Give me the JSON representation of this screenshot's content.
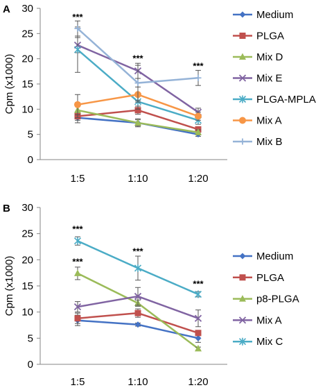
{
  "chart_data": [
    {
      "type": "line",
      "panel_label": "A",
      "ylabel": "Cpm (x1000)",
      "xlabel": "",
      "categories": [
        "1:5",
        "1:10",
        "1:20"
      ],
      "ylim": [
        0,
        30
      ],
      "yticks": [
        "0",
        "5",
        "10",
        "15",
        "20",
        "25",
        "30"
      ],
      "grid": false,
      "legend_position": "right",
      "series": [
        {
          "name": "Medium",
          "values": [
            8.3,
            7.3,
            5.0
          ],
          "errors": [
            1.0,
            0.6,
            0.4
          ],
          "color": "#4472C4",
          "marker": "diamond"
        },
        {
          "name": "PLGA",
          "values": [
            8.6,
            9.8,
            6.0
          ],
          "errors": [
            0.8,
            0.8,
            0.5
          ],
          "color": "#C0504D",
          "marker": "square"
        },
        {
          "name": "Mix D",
          "values": [
            9.8,
            7.3,
            5.4
          ],
          "errors": [
            1.5,
            0.8,
            0.5
          ],
          "color": "#9BBB59",
          "marker": "triangle"
        },
        {
          "name": "Mix E",
          "values": [
            22.7,
            17.6,
            9.4
          ],
          "errors": [
            1.5,
            1.5,
            0.8
          ],
          "color": "#8064A2",
          "marker": "x"
        },
        {
          "name": "PLGA-MPLA",
          "values": [
            21.8,
            11.5,
            7.8
          ],
          "errors": [
            4.5,
            1.5,
            0.8
          ],
          "color": "#4BACC6",
          "marker": "star"
        },
        {
          "name": "Mix A",
          "values": [
            10.9,
            12.9,
            8.6
          ],
          "errors": [
            2.0,
            1.5,
            0.8
          ],
          "color": "#F79646",
          "marker": "circle"
        },
        {
          "name": "Mix B",
          "values": [
            26.0,
            15.2,
            16.2
          ],
          "errors": [
            1.5,
            3.5,
            1.5
          ],
          "color": "#95B3D7",
          "marker": "plus"
        }
      ],
      "annotations": [
        {
          "category": "1:5",
          "y": 28.2,
          "text": "***"
        },
        {
          "category": "1:10",
          "y": 20.0,
          "text": "***"
        },
        {
          "category": "1:20",
          "y": 18.5,
          "text": "***"
        }
      ]
    },
    {
      "type": "line",
      "panel_label": "B",
      "ylabel": "Cpm (x1000)",
      "xlabel": "",
      "categories": [
        "1:5",
        "1:10",
        "1:20"
      ],
      "ylim": [
        0,
        30
      ],
      "yticks": [
        "0",
        "5",
        "10",
        "15",
        "20",
        "25",
        "30"
      ],
      "grid": false,
      "legend_position": "right",
      "series": [
        {
          "name": "Medium",
          "values": [
            8.4,
            7.6,
            5.0
          ],
          "errors": [
            1.0,
            0.3,
            0.8
          ],
          "color": "#4472C4",
          "marker": "diamond"
        },
        {
          "name": "PLGA",
          "values": [
            8.8,
            9.8,
            6.0
          ],
          "errors": [
            1.0,
            0.8,
            0.5
          ],
          "color": "#C0504D",
          "marker": "square"
        },
        {
          "name": "p8-PLGA",
          "values": [
            17.4,
            11.7,
            3.0
          ],
          "errors": [
            1.2,
            0.6,
            0.3
          ],
          "color": "#9BBB59",
          "marker": "triangle"
        },
        {
          "name": "Mix A",
          "values": [
            11.0,
            13.0,
            8.8
          ],
          "errors": [
            1.0,
            1.7,
            1.6
          ],
          "color": "#8064A2",
          "marker": "x"
        },
        {
          "name": "Mix C",
          "values": [
            23.6,
            18.4,
            13.4
          ],
          "errors": [
            0.8,
            2.3,
            0.5
          ],
          "color": "#4BACC6",
          "marker": "star"
        }
      ],
      "annotations": [
        {
          "category": "1:5",
          "y": 25.8,
          "text": "***"
        },
        {
          "category": "1:5",
          "y": 19.6,
          "text": "***"
        },
        {
          "category": "1:10",
          "y": 21.6,
          "text": "***"
        },
        {
          "category": "1:20",
          "y": 15.3,
          "text": "***"
        }
      ]
    }
  ]
}
